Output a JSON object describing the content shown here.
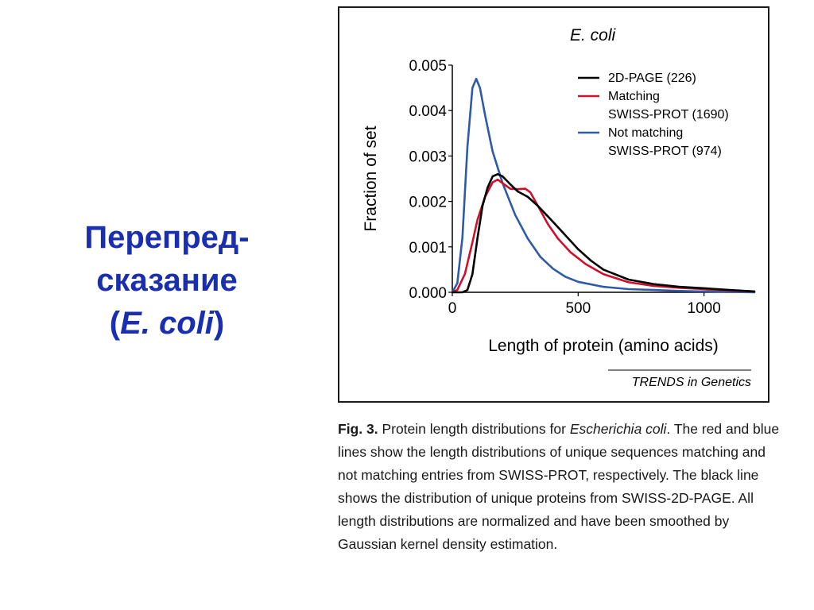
{
  "slide": {
    "title_line1": "Перепред-",
    "title_line2": "сказание",
    "title_paren_open": "(",
    "title_species": "E. coli",
    "title_paren_close": ")",
    "title_color": "#1a2fb0"
  },
  "figure": {
    "source": "TRENDS in Genetics"
  },
  "caption": {
    "label": "Fig. 3.",
    "text_before_species": "Protein length distributions for",
    "species": "Escherichia coli",
    "text_after_species": ". The red and blue lines show the length distributions of unique sequences matching and not matching entries from SWISS-PROT, respectively. The black line shows the distribution of unique proteins from SWISS-2D-PAGE. All length distributions are normalized and have been smoothed by Gaussian kernel density estimation."
  },
  "chart_data": {
    "type": "line",
    "title": "E. coli",
    "xlabel": "Length of protein (amino acids)",
    "ylabel": "Fraction of set",
    "xlim": [
      0,
      1200
    ],
    "ylim": [
      0,
      0.005
    ],
    "xticks": [
      0,
      500,
      1000
    ],
    "xtick_labels": [
      "0",
      "500",
      "1000"
    ],
    "yticks": [
      0,
      0.001,
      0.002,
      0.003,
      0.004,
      0.005
    ],
    "ytick_labels": [
      "0.000",
      "0.001",
      "0.002",
      "0.003",
      "0.004",
      "0.005"
    ],
    "grid": false,
    "legend_position": "top-right",
    "series": [
      {
        "name": "Not matching SWISS-PROT (974)",
        "legend_lines": [
          "Not matching",
          "SWISS-PROT (974)"
        ],
        "color": "#2e5aa8",
        "x": [
          0,
          20,
          40,
          60,
          80,
          95,
          110,
          130,
          160,
          200,
          250,
          300,
          350,
          400,
          450,
          500,
          600,
          700,
          800,
          900,
          1000,
          1100,
          1200
        ],
        "y": [
          0.0,
          0.0002,
          0.0012,
          0.0032,
          0.0045,
          0.0047,
          0.0045,
          0.0039,
          0.0031,
          0.0024,
          0.0017,
          0.00118,
          0.00078,
          0.00052,
          0.00034,
          0.00023,
          0.00012,
          7e-05,
          5e-05,
          3e-05,
          2e-05,
          1e-05,
          0.0
        ]
      },
      {
        "name": "Matching SWISS-PROT (1690)",
        "legend_lines": [
          "Matching",
          "SWISS-PROT (1690)"
        ],
        "color": "#d0102a",
        "x": [
          0,
          20,
          50,
          80,
          100,
          130,
          160,
          180,
          200,
          230,
          260,
          290,
          310,
          340,
          380,
          420,
          470,
          530,
          600,
          700,
          800,
          900,
          1000,
          1100,
          1200
        ],
        "y": [
          0.0,
          5e-05,
          0.0004,
          0.0011,
          0.0016,
          0.0021,
          0.00242,
          0.00248,
          0.0024,
          0.00228,
          0.00227,
          0.00228,
          0.0022,
          0.0019,
          0.0015,
          0.00118,
          0.00088,
          0.00062,
          0.0004,
          0.00022,
          0.00014,
          0.0001,
          7e-05,
          4e-05,
          2e-05
        ]
      },
      {
        "name": "2D-PAGE (226)",
        "legend_lines": [
          "2D-PAGE (226)"
        ],
        "color": "#000000",
        "x": [
          0,
          40,
          60,
          80,
          100,
          120,
          140,
          160,
          180,
          200,
          230,
          260,
          300,
          340,
          400,
          450,
          500,
          550,
          600,
          700,
          800,
          900,
          1000,
          1100,
          1200
        ],
        "y": [
          0.0,
          0.0,
          5e-05,
          0.0004,
          0.0012,
          0.0019,
          0.0023,
          0.00255,
          0.0026,
          0.00255,
          0.00238,
          0.00222,
          0.0021,
          0.0019,
          0.00155,
          0.00125,
          0.00095,
          0.0007,
          0.0005,
          0.00028,
          0.00018,
          0.00012,
          9e-05,
          5e-05,
          2e-05
        ]
      }
    ]
  }
}
